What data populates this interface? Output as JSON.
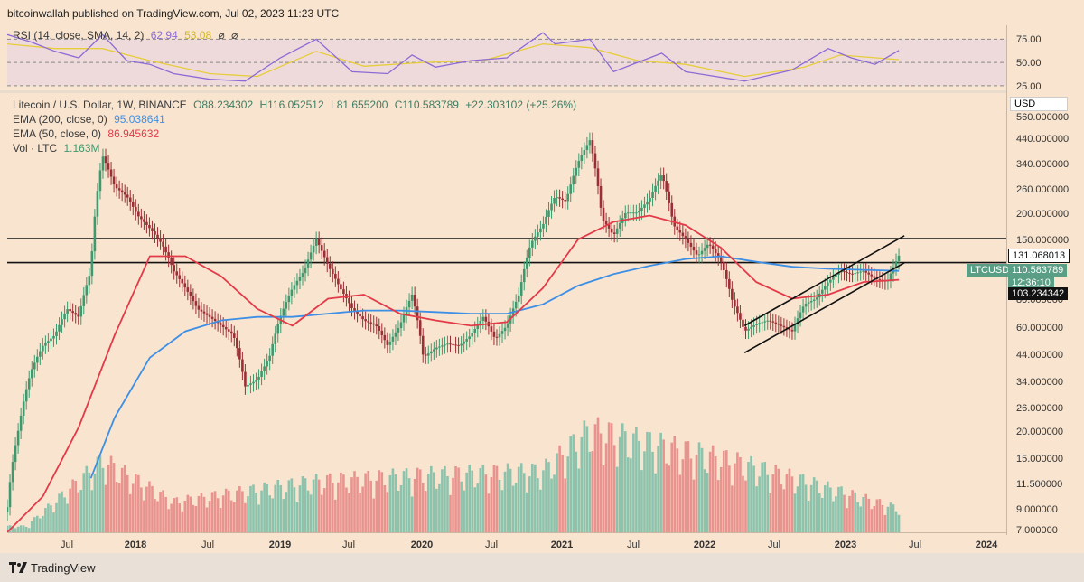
{
  "header": {
    "text": "bitcoinwallah published on TradingView.com, Jul 02, 2023 11:23 UTC"
  },
  "rsi": {
    "label": "RSI (14, close, SMA, 14, 2)",
    "value": "62.94",
    "sma": "53.08",
    "icons": [
      "⌀",
      "⌀"
    ],
    "levels": [
      "75.00",
      "50.00",
      "25.00"
    ],
    "colors": {
      "rsi": "#8c6ad6",
      "sma": "#e6cd3a",
      "band": "#e9d4e2"
    }
  },
  "price_legend": {
    "title": "Litecoin / U.S. Dollar, 1W, BINANCE",
    "o": "O88.234302",
    "h": "H116.052512",
    "l": "L81.655200",
    "c": "C110.583789",
    "chg": "+22.303102 (+25.26%)",
    "ema200_label": "EMA (200, close, 0)",
    "ema200_value": "95.038641",
    "ema50_label": "EMA (50, close, 0)",
    "ema50_value": "86.945632",
    "vol_label": "Vol · LTC",
    "vol_value": "1.163M"
  },
  "right_axis": {
    "currency": "USD",
    "ticks": [
      "560.000000",
      "440.000000",
      "340.000000",
      "260.000000",
      "200.000000",
      "150.000000",
      "80.000000",
      "60.000000",
      "44.000000",
      "34.000000",
      "26.000000",
      "20.000000",
      "15.000000",
      "11.500000",
      "9.000000",
      "7.000000"
    ],
    "labels": {
      "resistance": "131.068013",
      "symbol": "LTCUSD",
      "price": "110.583789",
      "countdown": "12:36:10",
      "support": "103.234342"
    }
  },
  "x_axis": {
    "labels": [
      "Jul",
      "2018",
      "Jul",
      "2019",
      "Jul",
      "2020",
      "Jul",
      "2021",
      "Jul",
      "2022",
      "Jul",
      "2023",
      "Jul",
      "2024"
    ]
  },
  "footer": {
    "brand": "TradingView"
  },
  "colors": {
    "up": "#3e9a6e",
    "down": "#9b2f35",
    "ema200": "#3d8fe6",
    "ema50": "#e33a48",
    "vol_up": "#8bc3ad",
    "vol_down": "#e9938f",
    "bg": "#f8e4cf"
  },
  "chart_data": {
    "type": "candlestick",
    "title": "Litecoin / U.S. Dollar, 1W, BINANCE",
    "y_scale": "log",
    "ylim": [
      7,
      560
    ],
    "x_range": [
      "2017-04",
      "2024-04"
    ],
    "hlines": [
      131.068013,
      103.234342
    ],
    "price_path": [
      [
        "2017-04-01",
        9
      ],
      [
        "2017-05-01",
        20
      ],
      [
        "2017-06-01",
        35
      ],
      [
        "2017-07-01",
        45
      ],
      [
        "2017-08-01",
        50
      ],
      [
        "2017-09-01",
        65
      ],
      [
        "2017-10-01",
        60
      ],
      [
        "2017-11-01",
        95
      ],
      [
        "2017-12-01",
        300
      ],
      [
        "2018-01-01",
        220
      ],
      [
        "2018-02-01",
        200
      ],
      [
        "2018-03-01",
        165
      ],
      [
        "2018-04-01",
        145
      ],
      [
        "2018-05-01",
        125
      ],
      [
        "2018-06-01",
        95
      ],
      [
        "2018-07-01",
        80
      ],
      [
        "2018-08-01",
        65
      ],
      [
        "2018-09-01",
        60
      ],
      [
        "2018-10-01",
        55
      ],
      [
        "2018-11-01",
        50
      ],
      [
        "2018-12-01",
        30
      ],
      [
        "2019-01-01",
        32
      ],
      [
        "2019-02-01",
        40
      ],
      [
        "2019-03-01",
        60
      ],
      [
        "2019-04-01",
        80
      ],
      [
        "2019-05-01",
        95
      ],
      [
        "2019-06-01",
        130
      ],
      [
        "2019-07-01",
        100
      ],
      [
        "2019-08-01",
        80
      ],
      [
        "2019-09-01",
        65
      ],
      [
        "2019-10-01",
        58
      ],
      [
        "2019-11-01",
        55
      ],
      [
        "2019-12-01",
        45
      ],
      [
        "2020-01-01",
        55
      ],
      [
        "2020-02-01",
        75
      ],
      [
        "2020-03-01",
        40
      ],
      [
        "2020-04-01",
        44
      ],
      [
        "2020-05-01",
        46
      ],
      [
        "2020-06-01",
        45
      ],
      [
        "2020-07-01",
        50
      ],
      [
        "2020-08-01",
        60
      ],
      [
        "2020-09-01",
        48
      ],
      [
        "2020-10-01",
        55
      ],
      [
        "2020-11-01",
        75
      ],
      [
        "2020-12-01",
        125
      ],
      [
        "2021-01-01",
        150
      ],
      [
        "2021-02-01",
        200
      ],
      [
        "2021-03-01",
        190
      ],
      [
        "2021-04-01",
        280
      ],
      [
        "2021-05-01",
        350
      ],
      [
        "2021-06-01",
        160
      ],
      [
        "2021-07-01",
        135
      ],
      [
        "2021-08-01",
        170
      ],
      [
        "2021-09-01",
        170
      ],
      [
        "2021-10-01",
        195
      ],
      [
        "2021-11-01",
        250
      ],
      [
        "2021-12-01",
        150
      ],
      [
        "2022-01-01",
        130
      ],
      [
        "2022-02-01",
        110
      ],
      [
        "2022-03-01",
        125
      ],
      [
        "2022-04-01",
        105
      ],
      [
        "2022-05-01",
        70
      ],
      [
        "2022-06-01",
        52
      ],
      [
        "2022-07-01",
        56
      ],
      [
        "2022-08-01",
        58
      ],
      [
        "2022-09-01",
        55
      ],
      [
        "2022-10-01",
        52
      ],
      [
        "2022-11-01",
        68
      ],
      [
        "2022-12-01",
        72
      ],
      [
        "2023-01-01",
        85
      ],
      [
        "2023-02-01",
        95
      ],
      [
        "2023-03-01",
        92
      ],
      [
        "2023-04-01",
        95
      ],
      [
        "2023-05-01",
        88
      ],
      [
        "2023-06-01",
        85
      ],
      [
        "2023-07-01",
        110.58
      ]
    ],
    "ema50": [
      [
        "2017-04-01",
        7
      ],
      [
        "2017-07-01",
        10
      ],
      [
        "2017-10-01",
        20
      ],
      [
        "2018-01-01",
        50
      ],
      [
        "2018-04-01",
        110
      ],
      [
        "2018-07-01",
        110
      ],
      [
        "2018-10-01",
        90
      ],
      [
        "2019-01-01",
        65
      ],
      [
        "2019-04-01",
        55
      ],
      [
        "2019-07-01",
        72
      ],
      [
        "2019-10-01",
        75
      ],
      [
        "2020-01-01",
        62
      ],
      [
        "2020-04-01",
        58
      ],
      [
        "2020-07-01",
        55
      ],
      [
        "2020-10-01",
        57
      ],
      [
        "2021-01-01",
        80
      ],
      [
        "2021-04-01",
        130
      ],
      [
        "2021-07-01",
        155
      ],
      [
        "2021-10-01",
        165
      ],
      [
        "2022-01-01",
        150
      ],
      [
        "2022-04-01",
        120
      ],
      [
        "2022-07-01",
        85
      ],
      [
        "2022-10-01",
        72
      ],
      [
        "2023-01-01",
        75
      ],
      [
        "2023-04-01",
        85
      ],
      [
        "2023-07-01",
        86.95
      ]
    ],
    "ema200": [
      [
        "2017-11-01",
        12
      ],
      [
        "2018-01-01",
        22
      ],
      [
        "2018-04-01",
        40
      ],
      [
        "2018-07-01",
        52
      ],
      [
        "2018-10-01",
        58
      ],
      [
        "2019-01-01",
        60
      ],
      [
        "2019-04-01",
        60
      ],
      [
        "2019-07-01",
        62
      ],
      [
        "2019-10-01",
        64
      ],
      [
        "2020-01-01",
        64
      ],
      [
        "2020-04-01",
        63
      ],
      [
        "2020-07-01",
        62
      ],
      [
        "2020-10-01",
        62
      ],
      [
        "2021-01-01",
        68
      ],
      [
        "2021-04-01",
        82
      ],
      [
        "2021-07-01",
        92
      ],
      [
        "2021-10-01",
        100
      ],
      [
        "2022-01-01",
        107
      ],
      [
        "2022-04-01",
        110
      ],
      [
        "2022-07-01",
        104
      ],
      [
        "2022-10-01",
        99
      ],
      [
        "2023-01-01",
        97
      ],
      [
        "2023-04-01",
        96
      ],
      [
        "2023-07-01",
        95.04
      ]
    ],
    "channel_lines": [
      {
        "from": [
          "2022-06-01",
          55
        ],
        "to": [
          "2023-07-15",
          135
        ]
      },
      {
        "from": [
          "2022-06-01",
          42
        ],
        "to": [
          "2023-07-15",
          103
        ]
      }
    ],
    "rsi_path": [
      [
        "2017-04-01",
        80
      ],
      [
        "2017-06-01",
        72
      ],
      [
        "2017-08-01",
        62
      ],
      [
        "2017-10-01",
        55
      ],
      [
        "2017-12-01",
        80
      ],
      [
        "2018-02-01",
        52
      ],
      [
        "2018-04-01",
        48
      ],
      [
        "2018-06-01",
        38
      ],
      [
        "2018-09-01",
        32
      ],
      [
        "2018-12-01",
        30
      ],
      [
        "2019-03-01",
        55
      ],
      [
        "2019-06-01",
        75
      ],
      [
        "2019-09-01",
        40
      ],
      [
        "2019-12-01",
        38
      ],
      [
        "2020-02-01",
        58
      ],
      [
        "2020-04-01",
        45
      ],
      [
        "2020-07-01",
        52
      ],
      [
        "2020-10-01",
        55
      ],
      [
        "2021-01-01",
        82
      ],
      [
        "2021-02-01",
        70
      ],
      [
        "2021-05-01",
        75
      ],
      [
        "2021-07-01",
        40
      ],
      [
        "2021-11-01",
        60
      ],
      [
        "2022-01-01",
        40
      ],
      [
        "2022-06-01",
        30
      ],
      [
        "2022-10-01",
        42
      ],
      [
        "2023-01-01",
        65
      ],
      [
        "2023-03-01",
        55
      ],
      [
        "2023-05-01",
        48
      ],
      [
        "2023-07-01",
        62.94
      ]
    ],
    "rsi_sma_path": [
      [
        "2017-04-01",
        70
      ],
      [
        "2017-08-01",
        65
      ],
      [
        "2017-12-01",
        65
      ],
      [
        "2018-04-01",
        52
      ],
      [
        "2018-09-01",
        38
      ],
      [
        "2019-01-01",
        35
      ],
      [
        "2019-06-01",
        62
      ],
      [
        "2019-10-01",
        46
      ],
      [
        "2020-03-01",
        50
      ],
      [
        "2020-08-01",
        52
      ],
      [
        "2021-01-01",
        70
      ],
      [
        "2021-05-01",
        66
      ],
      [
        "2021-09-01",
        52
      ],
      [
        "2022-01-01",
        48
      ],
      [
        "2022-06-01",
        35
      ],
      [
        "2022-11-01",
        45
      ],
      [
        "2023-02-01",
        58
      ],
      [
        "2023-07-01",
        53.08
      ]
    ],
    "rsi_ylim": [
      20,
      90
    ],
    "volume_path": [
      [
        "2017-06-01",
        0.5
      ],
      [
        "2017-12-01",
        3.5
      ],
      [
        "2018-06-01",
        1.5
      ],
      [
        "2019-06-01",
        2.5
      ],
      [
        "2020-03-01",
        2.8
      ],
      [
        "2021-01-01",
        3.0
      ],
      [
        "2021-05-01",
        5.0
      ],
      [
        "2022-05-01",
        3.5
      ],
      [
        "2022-11-01",
        2.5
      ],
      [
        "2023-07-01",
        1.163
      ]
    ]
  }
}
